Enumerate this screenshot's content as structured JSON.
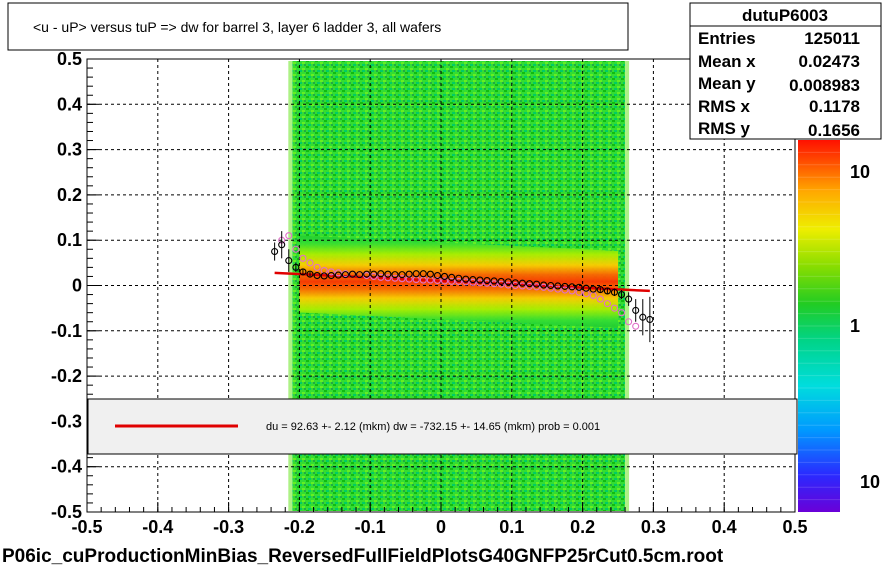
{
  "title": "<u - uP>       versus  tuP =>  dw for barrel 3, layer 6 ladder 3, all wafers",
  "footer": "P06ic_cuProductionMinBias_ReversedFullFieldPlotsG40GNFP25rCut0.5cm.root",
  "stats": {
    "name": "dutuP6003",
    "rows": [
      {
        "label": "Entries",
        "value": "125011"
      },
      {
        "label": "Mean x",
        "value": "0.02473"
      },
      {
        "label": "Mean y",
        "value": "0.008983"
      },
      {
        "label": "RMS x",
        "value": "0.1178"
      },
      {
        "label": "RMS y",
        "value": "0.1656"
      }
    ]
  },
  "fit_text": "du =   92.63 +-  2.12 (mkm) dw = -732.15 +- 14.65 (mkm) prob = 0.001",
  "colors": {
    "fit_line": "#e00000",
    "profile_black": "#000000",
    "profile_pink": "#e070c8",
    "frame": "#000000"
  },
  "chart_data": {
    "type": "heatmap",
    "xlim": [
      -0.5,
      0.5
    ],
    "ylim": [
      -0.5,
      0.5
    ],
    "xticks": [
      "-0.5",
      "-0.4",
      "-0.3",
      "-0.2",
      "-0.1",
      "0",
      "0.1",
      "0.2",
      "0.3",
      "0.4",
      "0.5"
    ],
    "yticks": [
      "-0.5",
      "-0.4",
      "-0.3",
      "-0.2",
      "-0.1",
      "0",
      "0.1",
      "0.2",
      "0.3",
      "0.4",
      "0.5"
    ],
    "z_log": true,
    "zticks": [
      "10",
      "1",
      "10"
    ],
    "grid": true,
    "data_x_range": [
      -0.21,
      0.26
    ],
    "band_center_y": 0.01,
    "fit_line": {
      "x": [
        -0.235,
        0.295
      ],
      "y": [
        0.028,
        -0.012
      ]
    },
    "profile_black": {
      "x": [
        -0.235,
        -0.225,
        -0.215,
        -0.205,
        -0.195,
        -0.185,
        -0.175,
        -0.165,
        -0.155,
        -0.145,
        -0.135,
        -0.125,
        -0.115,
        -0.105,
        -0.095,
        -0.085,
        -0.075,
        -0.065,
        -0.055,
        -0.045,
        -0.035,
        -0.025,
        -0.015,
        -0.005,
        0.005,
        0.015,
        0.025,
        0.035,
        0.045,
        0.055,
        0.065,
        0.075,
        0.085,
        0.095,
        0.105,
        0.115,
        0.125,
        0.135,
        0.145,
        0.155,
        0.165,
        0.175,
        0.185,
        0.195,
        0.205,
        0.215,
        0.225,
        0.235,
        0.245,
        0.255,
        0.265,
        0.275,
        0.285,
        0.295
      ],
      "y": [
        0.075,
        0.09,
        0.055,
        0.04,
        0.03,
        0.025,
        0.022,
        0.021,
        0.022,
        0.023,
        0.024,
        0.025,
        0.024,
        0.025,
        0.025,
        0.026,
        0.025,
        0.024,
        0.024,
        0.025,
        0.026,
        0.026,
        0.025,
        0.022,
        0.02,
        0.018,
        0.016,
        0.014,
        0.013,
        0.012,
        0.011,
        0.01,
        0.009,
        0.008,
        0.006,
        0.005,
        0.004,
        0.003,
        0.001,
        0.0,
        -0.001,
        -0.002,
        -0.003,
        -0.004,
        -0.006,
        -0.008,
        -0.009,
        -0.012,
        -0.015,
        -0.02,
        -0.03,
        -0.055,
        -0.07,
        -0.075
      ],
      "err": [
        0.02,
        0.03,
        0.025,
        0.01,
        0.006,
        0.005,
        0.004,
        0.003,
        0.003,
        0.003,
        0.003,
        0.003,
        0.003,
        0.003,
        0.003,
        0.003,
        0.003,
        0.003,
        0.003,
        0.003,
        0.003,
        0.003,
        0.003,
        0.003,
        0.003,
        0.003,
        0.003,
        0.003,
        0.003,
        0.003,
        0.003,
        0.003,
        0.003,
        0.003,
        0.003,
        0.003,
        0.003,
        0.003,
        0.003,
        0.003,
        0.003,
        0.003,
        0.003,
        0.003,
        0.004,
        0.004,
        0.005,
        0.006,
        0.008,
        0.01,
        0.015,
        0.025,
        0.04,
        0.05
      ]
    },
    "profile_pink": {
      "x": [
        -0.225,
        -0.215,
        -0.205,
        -0.195,
        -0.185,
        -0.175,
        -0.165,
        -0.155,
        -0.145,
        -0.135,
        -0.125,
        -0.115,
        -0.105,
        -0.095,
        -0.085,
        -0.075,
        -0.065,
        -0.055,
        -0.045,
        -0.035,
        -0.025,
        -0.015,
        -0.005,
        0.005,
        0.015,
        0.025,
        0.035,
        0.045,
        0.055,
        0.065,
        0.075,
        0.085,
        0.095,
        0.105,
        0.115,
        0.125,
        0.135,
        0.145,
        0.155,
        0.165,
        0.175,
        0.185,
        0.195,
        0.205,
        0.215,
        0.225,
        0.235,
        0.245,
        0.255,
        0.265,
        0.275
      ],
      "y": [
        0.1,
        0.11,
        0.08,
        0.06,
        0.05,
        0.04,
        0.033,
        0.03,
        0.028,
        0.026,
        0.025,
        0.024,
        0.022,
        0.02,
        0.018,
        0.017,
        0.016,
        0.015,
        0.014,
        0.013,
        0.012,
        0.012,
        0.011,
        0.01,
        0.009,
        0.009,
        0.008,
        0.007,
        0.006,
        0.005,
        0.004,
        0.003,
        0.001,
        0.0,
        -0.001,
        -0.002,
        -0.003,
        -0.004,
        -0.006,
        -0.008,
        -0.01,
        -0.012,
        -0.015,
        -0.018,
        -0.022,
        -0.03,
        -0.04,
        -0.05,
        -0.06,
        -0.08,
        -0.09
      ]
    }
  }
}
